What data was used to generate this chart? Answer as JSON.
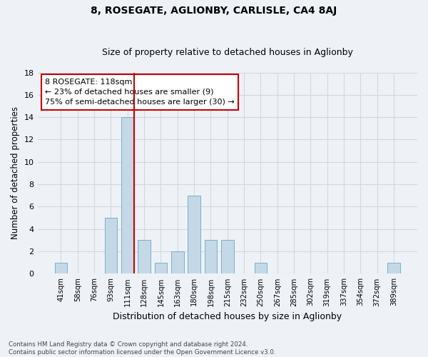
{
  "title1": "8, ROSEGATE, AGLIONBY, CARLISLE, CA4 8AJ",
  "title2": "Size of property relative to detached houses in Aglionby",
  "xlabel": "Distribution of detached houses by size in Aglionby",
  "ylabel": "Number of detached properties",
  "footer": "Contains HM Land Registry data © Crown copyright and database right 2024.\nContains public sector information licensed under the Open Government Licence v3.0.",
  "categories": [
    "41sqm",
    "58sqm",
    "76sqm",
    "93sqm",
    "111sqm",
    "128sqm",
    "145sqm",
    "163sqm",
    "180sqm",
    "198sqm",
    "215sqm",
    "232sqm",
    "250sqm",
    "267sqm",
    "285sqm",
    "302sqm",
    "319sqm",
    "337sqm",
    "354sqm",
    "372sqm",
    "389sqm"
  ],
  "values": [
    1,
    0,
    0,
    5,
    14,
    3,
    1,
    2,
    7,
    3,
    3,
    0,
    1,
    0,
    0,
    0,
    0,
    0,
    0,
    0,
    1
  ],
  "bar_color": "#c5d8e8",
  "bar_edge_color": "#7aafc8",
  "subject_line_color": "#cc0000",
  "annotation_text": "8 ROSEGATE: 118sqm\n← 23% of detached houses are smaller (9)\n75% of semi-detached houses are larger (30) →",
  "annotation_box_color": "#cc0000",
  "ylim": [
    0,
    18
  ],
  "yticks": [
    0,
    2,
    4,
    6,
    8,
    10,
    12,
    14,
    16,
    18
  ],
  "grid_color": "#d0d8e0",
  "bg_color": "#eef2f7",
  "bar_width": 0.75
}
